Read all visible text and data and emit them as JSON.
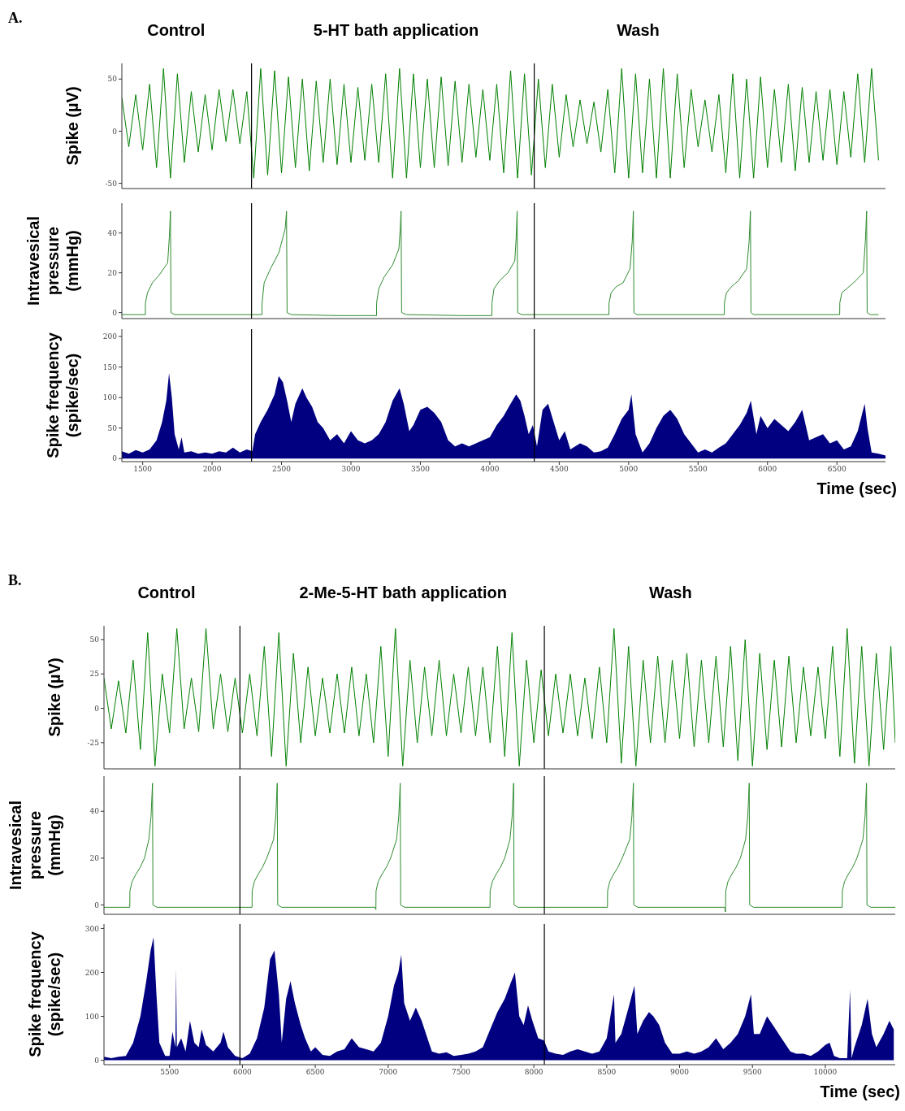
{
  "chart_data": [
    {
      "type": "line",
      "title": "A.",
      "ylabel": "Spike (µV)",
      "tick_labels": "y",
      "xlim": [
        1350,
        6850
      ],
      "ylim": [
        -55,
        65
      ],
      "yticks": [
        -50,
        0,
        50
      ],
      "annotations": [
        "Control",
        "5-HT bath application",
        "Wash"
      ],
      "ref_lines": [
        {
          "axis": "x",
          "value": 2284,
          "color": "#000000"
        },
        {
          "axis": "x",
          "value": 4320,
          "color": "#000000"
        }
      ],
      "x": [
        1350,
        1400,
        1450,
        1500,
        1550,
        1600,
        1650,
        1700,
        1750,
        1800,
        1850,
        1900,
        1950,
        2000,
        2050,
        2100,
        2150,
        2200,
        2250,
        2300,
        2350,
        2400,
        2450,
        2500,
        2550,
        2600,
        2650,
        2700,
        2750,
        2800,
        2850,
        2900,
        2950,
        3000,
        3050,
        3100,
        3150,
        3200,
        3250,
        3300,
        3350,
        3400,
        3450,
        3500,
        3550,
        3600,
        3650,
        3700,
        3750,
        3800,
        3850,
        3900,
        3950,
        4000,
        4050,
        4100,
        4150,
        4200,
        4250,
        4300,
        4350,
        4400,
        4450,
        4500,
        4550,
        4600,
        4650,
        4700,
        4750,
        4800,
        4850,
        4900,
        4950,
        5000,
        5050,
        5100,
        5150,
        5200,
        5250,
        5300,
        5350,
        5400,
        5450,
        5500,
        5550,
        5600,
        5650,
        5700,
        5750,
        5800,
        5850,
        5900,
        5950,
        6000,
        6050,
        6100,
        6150,
        6200,
        6250,
        6300,
        6350,
        6400,
        6450,
        6500,
        6550,
        6600,
        6650,
        6700,
        6750,
        6800
      ],
      "series": [
        {
          "color": "#008000",
          "values": [
            32,
            -15,
            35,
            -18,
            45,
            -35,
            60,
            -45,
            55,
            -30,
            38,
            -20,
            35,
            -18,
            40,
            -10,
            40,
            -12,
            38,
            -45,
            60,
            -42,
            58,
            -40,
            52,
            -35,
            50,
            -38,
            48,
            -30,
            50,
            -32,
            45,
            -30,
            42,
            -28,
            45,
            -30,
            55,
            -45,
            60,
            -45,
            55,
            -35,
            50,
            -35,
            52,
            -33,
            48,
            -30,
            45,
            -25,
            40,
            -28,
            45,
            -40,
            58,
            -45,
            55,
            -42,
            50,
            -35,
            45,
            -25,
            35,
            -15,
            30,
            -12,
            28,
            -20,
            40,
            -40,
            60,
            -45,
            55,
            -40,
            50,
            -45,
            60,
            -45,
            55,
            -35,
            40,
            -15,
            30,
            -20,
            35,
            -40,
            55,
            -45,
            50,
            -45,
            52,
            -35,
            40,
            -30,
            45,
            -38,
            42,
            -30,
            38,
            -28,
            40,
            -32,
            38,
            -25,
            55,
            -30,
            60,
            -28
          ]
        }
      ]
    },
    {
      "type": "line",
      "ylabel": "Intravesical\npressure\n(mmHg)",
      "tick_labels": "y",
      "xlim": [
        1350,
        6850
      ],
      "ylim": [
        -3,
        55
      ],
      "yticks": [
        0,
        20,
        40
      ],
      "ref_lines": [
        {
          "axis": "x",
          "value": 2284,
          "color": "#000000"
        },
        {
          "axis": "x",
          "value": 4320,
          "color": "#000000"
        }
      ],
      "x": [
        1350,
        1519,
        1520,
        1535,
        1570,
        1620,
        1680,
        1692,
        1700,
        1704,
        1730,
        2100,
        2359,
        2360,
        2375,
        2420,
        2480,
        2526,
        2536,
        2540,
        2570,
        2900,
        3100,
        3184,
        3185,
        3200,
        3240,
        3300,
        3345,
        3355,
        3361,
        3365,
        3400,
        3800,
        4015,
        4016,
        4030,
        4070,
        4130,
        4180,
        4190,
        4197,
        4201,
        4230,
        4858,
        4859,
        4874,
        4910,
        4960,
        5010,
        5026,
        5034,
        5038,
        5060,
        5689,
        5690,
        5705,
        5740,
        5790,
        5850,
        5868,
        5877,
        5881,
        5900,
        6520,
        6521,
        6536,
        6570,
        6620,
        6690,
        6705,
        6714,
        6718,
        6740,
        6800
      ],
      "series": [
        {
          "color": "#2e8b2e",
          "values": [
            -1,
            -1,
            5,
            10,
            15,
            19,
            25,
            38,
            51,
            0,
            -1,
            -1,
            -1,
            5,
            15,
            22,
            30,
            42,
            51,
            0,
            -1,
            -1.5,
            -1.5,
            -1.5,
            5,
            12,
            18,
            24,
            32,
            42,
            51,
            0,
            -1,
            -1.5,
            -1.5,
            5,
            12,
            16,
            20,
            26,
            38,
            51,
            0,
            -1,
            -1,
            5,
            10,
            13,
            15,
            22,
            36,
            51,
            0,
            -1,
            -1,
            5,
            10,
            13,
            16,
            22,
            36,
            51,
            0,
            -1,
            -1,
            5,
            10,
            12,
            15,
            20,
            36,
            51,
            0,
            -1,
            -1
          ]
        }
      ]
    },
    {
      "type": "area",
      "ylabel": "Spike frequency\n(spike/sec)",
      "xlabel": "Time (sec)",
      "xlim": [
        1350,
        6850
      ],
      "xticks": [
        1500,
        2000,
        2500,
        3000,
        3500,
        4000,
        4500,
        5000,
        5500,
        6000,
        6500
      ],
      "ylim": [
        -5,
        212
      ],
      "yticks": [
        0,
        50,
        100,
        150,
        200
      ],
      "ref_lines": [
        {
          "axis": "x",
          "value": 2284,
          "color": "#000000"
        },
        {
          "axis": "x",
          "value": 4320,
          "color": "#000000"
        }
      ],
      "x": [
        1350,
        1400,
        1450,
        1500,
        1550,
        1600,
        1640,
        1670,
        1690,
        1710,
        1730,
        1760,
        1780,
        1800,
        1850,
        1900,
        1950,
        2000,
        2050,
        2100,
        2150,
        2200,
        2250,
        2290,
        2310,
        2350,
        2400,
        2450,
        2480,
        2510,
        2540,
        2570,
        2600,
        2650,
        2680,
        2720,
        2760,
        2800,
        2850,
        2900,
        2950,
        3000,
        3050,
        3100,
        3150,
        3200,
        3250,
        3300,
        3350,
        3380,
        3420,
        3450,
        3500,
        3550,
        3600,
        3650,
        3700,
        3750,
        3800,
        3850,
        3900,
        3950,
        4000,
        4050,
        4100,
        4150,
        4190,
        4220,
        4250,
        4280,
        4310,
        4340,
        4380,
        4420,
        4460,
        4500,
        4540,
        4580,
        4650,
        4700,
        4750,
        4800,
        4850,
        4900,
        4950,
        5000,
        5020,
        5050,
        5100,
        5150,
        5200,
        5250,
        5300,
        5350,
        5400,
        5450,
        5500,
        5550,
        5600,
        5650,
        5700,
        5750,
        5800,
        5850,
        5880,
        5920,
        5950,
        6000,
        6050,
        6100,
        6150,
        6200,
        6250,
        6270,
        6300,
        6350,
        6400,
        6450,
        6500,
        6550,
        6600,
        6650,
        6700,
        6720,
        6750,
        6800,
        6850
      ],
      "series": [
        {
          "color": "#000080",
          "values": [
            12,
            8,
            14,
            10,
            15,
            30,
            60,
            95,
            140,
            100,
            40,
            15,
            35,
            10,
            12,
            8,
            10,
            8,
            12,
            10,
            18,
            10,
            15,
            12,
            40,
            60,
            80,
            105,
            135,
            125,
            95,
            60,
            90,
            115,
            100,
            85,
            60,
            50,
            30,
            40,
            25,
            45,
            30,
            25,
            30,
            40,
            60,
            95,
            115,
            90,
            45,
            55,
            80,
            85,
            75,
            60,
            30,
            20,
            25,
            20,
            25,
            30,
            35,
            55,
            70,
            90,
            105,
            95,
            70,
            40,
            55,
            20,
            80,
            90,
            60,
            30,
            45,
            15,
            25,
            20,
            10,
            12,
            18,
            40,
            65,
            80,
            105,
            40,
            10,
            25,
            50,
            70,
            80,
            65,
            40,
            25,
            10,
            15,
            10,
            18,
            25,
            40,
            55,
            75,
            95,
            40,
            70,
            50,
            65,
            55,
            45,
            60,
            80,
            60,
            30,
            35,
            40,
            25,
            30,
            15,
            20,
            45,
            90,
            50,
            10,
            8,
            5
          ]
        }
      ]
    },
    {
      "type": "line",
      "title": "B.",
      "ylabel": "Spike (µV)",
      "tick_labels": "y",
      "xlim": [
        5050,
        10480
      ],
      "ylim": [
        -44,
        60
      ],
      "yticks": [
        -25,
        0,
        25,
        50
      ],
      "annotations": [
        "Control",
        "2-Me-5-HT bath application",
        "Wash"
      ],
      "ref_lines": [
        {
          "axis": "x",
          "value": 5983,
          "color": "#000000"
        },
        {
          "axis": "x",
          "value": 8072,
          "color": "#000000"
        }
      ],
      "x": [
        5050,
        5100,
        5150,
        5200,
        5250,
        5300,
        5350,
        5400,
        5450,
        5500,
        5550,
        5600,
        5650,
        5700,
        5750,
        5800,
        5850,
        5900,
        5950,
        6000,
        6050,
        6100,
        6150,
        6200,
        6250,
        6300,
        6350,
        6400,
        6450,
        6500,
        6550,
        6600,
        6650,
        6700,
        6750,
        6800,
        6850,
        6900,
        6950,
        7000,
        7050,
        7100,
        7150,
        7200,
        7250,
        7300,
        7350,
        7400,
        7450,
        7500,
        7550,
        7600,
        7650,
        7700,
        7750,
        7800,
        7850,
        7900,
        7950,
        8000,
        8050,
        8100,
        8150,
        8200,
        8250,
        8300,
        8350,
        8400,
        8450,
        8500,
        8550,
        8600,
        8650,
        8700,
        8750,
        8800,
        8850,
        8900,
        8950,
        9000,
        9050,
        9100,
        9150,
        9200,
        9250,
        9300,
        9350,
        9400,
        9450,
        9500,
        9550,
        9600,
        9650,
        9700,
        9750,
        9800,
        9850,
        9900,
        9950,
        10000,
        10050,
        10100,
        10150,
        10200,
        10250,
        10300,
        10350,
        10400,
        10450,
        10480
      ],
      "series": [
        {
          "color": "#008000",
          "values": [
            22,
            -15,
            20,
            -18,
            35,
            -30,
            55,
            -42,
            25,
            -18,
            58,
            -15,
            22,
            -17,
            58,
            -15,
            25,
            -17,
            22,
            -18,
            25,
            -20,
            45,
            -35,
            55,
            -42,
            40,
            -25,
            30,
            -20,
            22,
            -18,
            25,
            -18,
            30,
            -20,
            25,
            -25,
            45,
            -35,
            58,
            -42,
            35,
            -25,
            30,
            -20,
            35,
            -20,
            25,
            -18,
            30,
            -20,
            30,
            -25,
            45,
            -35,
            55,
            -42,
            35,
            -25,
            28,
            -20,
            25,
            -18,
            25,
            -20,
            22,
            -22,
            30,
            -25,
            58,
            -40,
            45,
            -42,
            35,
            -25,
            38,
            -25,
            35,
            -22,
            40,
            -28,
            35,
            -25,
            38,
            -28,
            45,
            -38,
            50,
            -42,
            40,
            -30,
            35,
            -28,
            38,
            -25,
            30,
            -20,
            30,
            -22,
            45,
            -35,
            58,
            -40,
            45,
            -42,
            40,
            -30,
            45,
            -25
          ]
        }
      ]
    },
    {
      "type": "line",
      "ylabel": "Intravesical\npressure\n(mmHg)",
      "tick_labels": "y",
      "xlim": [
        5050,
        10480
      ],
      "ylim": [
        -4,
        55
      ],
      "yticks": [
        0,
        20,
        40
      ],
      "ref_lines": [
        {
          "axis": "x",
          "value": 5983,
          "color": "#000000"
        },
        {
          "axis": "x",
          "value": 8072,
          "color": "#000000"
        }
      ],
      "x": [
        5050,
        5227,
        5228,
        5243,
        5268,
        5298,
        5328,
        5358,
        5373,
        5383,
        5386,
        5413,
        6066,
        6067,
        6082,
        6107,
        6137,
        6167,
        6214,
        6229,
        6239,
        6242,
        6270,
        6910,
        6916,
        6917,
        6932,
        6957,
        6987,
        7017,
        7058,
        7073,
        7083,
        7086,
        7113,
        7699,
        7700,
        7715,
        7740,
        7770,
        7800,
        7836,
        7851,
        7861,
        7864,
        7891,
        8505,
        8506,
        8521,
        8546,
        8576,
        8606,
        8658,
        8673,
        8683,
        8686,
        8713,
        9310,
        9315,
        9317,
        9332,
        9357,
        9387,
        9417,
        9453,
        9468,
        9478,
        9481,
        9508,
        10116,
        10117,
        10132,
        10157,
        10187,
        10217,
        10258,
        10273,
        10283,
        10286,
        10313,
        10480
      ],
      "series": [
        {
          "color": "#2e8b2e",
          "values": [
            -1,
            -1,
            6,
            10,
            13,
            16,
            20,
            28,
            38,
            52,
            0,
            -1,
            -1,
            6,
            10,
            13,
            16,
            20,
            28,
            38,
            52,
            0,
            -1,
            -1,
            -2,
            6,
            10,
            13,
            16,
            20,
            28,
            38,
            52,
            0,
            -1,
            -1,
            6,
            10,
            13,
            16,
            20,
            28,
            38,
            52,
            0,
            -1,
            -1,
            6,
            10,
            13,
            16,
            20,
            28,
            38,
            52,
            0,
            -1,
            -1,
            -3,
            6,
            10,
            13,
            16,
            20,
            28,
            38,
            52,
            0,
            -1,
            -1,
            6,
            10,
            13,
            16,
            20,
            28,
            38,
            52,
            0,
            -1,
            -1
          ]
        }
      ]
    },
    {
      "type": "area",
      "ylabel": "Spike frequency\n(spike/sec)",
      "xlabel": "Time (sec)",
      "xlim": [
        5050,
        10480
      ],
      "xticks": [
        5500,
        6000,
        6500,
        7000,
        7500,
        8000,
        8500,
        9000,
        9500,
        10000
      ],
      "ylim": [
        -10,
        310
      ],
      "yticks": [
        0,
        100,
        200,
        300
      ],
      "ref_lines": [
        {
          "axis": "x",
          "value": 5983,
          "color": "#000000"
        },
        {
          "axis": "x",
          "value": 8072,
          "color": "#000000"
        }
      ],
      "x": [
        5050,
        5100,
        5150,
        5200,
        5250,
        5300,
        5340,
        5370,
        5390,
        5410,
        5430,
        5470,
        5500,
        5520,
        5540,
        5545,
        5550,
        5580,
        5610,
        5640,
        5670,
        5700,
        5720,
        5750,
        5800,
        5850,
        5870,
        5900,
        5950,
        6000,
        6050,
        6100,
        6150,
        6190,
        6220,
        6250,
        6270,
        6300,
        6330,
        6360,
        6400,
        6430,
        6470,
        6500,
        6550,
        6600,
        6650,
        6700,
        6750,
        6800,
        6850,
        6900,
        6950,
        7000,
        7040,
        7070,
        7090,
        7110,
        7150,
        7190,
        7230,
        7260,
        7300,
        7350,
        7400,
        7450,
        7500,
        7550,
        7600,
        7650,
        7700,
        7750,
        7800,
        7840,
        7870,
        7900,
        7930,
        7960,
        7990,
        8030,
        8070,
        8100,
        8150,
        8200,
        8250,
        8300,
        8350,
        8400,
        8450,
        8500,
        8550,
        8560,
        8600,
        8650,
        8690,
        8710,
        8750,
        8790,
        8820,
        8860,
        8900,
        8950,
        9000,
        9050,
        9100,
        9150,
        9200,
        9250,
        9300,
        9350,
        9400,
        9450,
        9490,
        9510,
        9550,
        9600,
        9640,
        9680,
        9720,
        9760,
        9800,
        9850,
        9900,
        9950,
        10000,
        10030,
        10060,
        10100,
        10150,
        10170,
        10180,
        10200,
        10250,
        10290,
        10320,
        10350,
        10400,
        10440,
        10470
      ],
      "series": [
        {
          "color": "#000080",
          "values": [
            8,
            5,
            8,
            10,
            40,
            100,
            180,
            250,
            280,
            150,
            40,
            10,
            10,
            65,
            30,
            210,
            30,
            50,
            20,
            90,
            40,
            30,
            70,
            35,
            20,
            40,
            65,
            30,
            10,
            5,
            15,
            50,
            120,
            230,
            250,
            150,
            40,
            140,
            180,
            130,
            80,
            50,
            20,
            30,
            12,
            10,
            20,
            25,
            50,
            30,
            25,
            20,
            40,
            100,
            170,
            200,
            240,
            130,
            90,
            120,
            90,
            60,
            20,
            15,
            18,
            10,
            12,
            15,
            20,
            30,
            70,
            110,
            140,
            175,
            200,
            100,
            80,
            125,
            90,
            50,
            45,
            20,
            15,
            12,
            20,
            25,
            20,
            15,
            20,
            50,
            150,
            40,
            60,
            120,
            170,
            60,
            90,
            110,
            100,
            80,
            40,
            15,
            15,
            20,
            15,
            20,
            30,
            50,
            25,
            40,
            60,
            100,
            150,
            60,
            60,
            100,
            80,
            60,
            40,
            20,
            15,
            15,
            10,
            20,
            35,
            40,
            10,
            5,
            5,
            160,
            5,
            30,
            80,
            140,
            60,
            30,
            60,
            90,
            70
          ]
        }
      ]
    }
  ]
}
